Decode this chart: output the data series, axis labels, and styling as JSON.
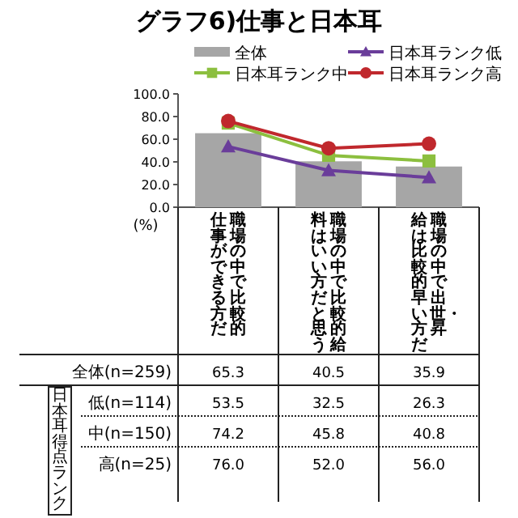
{
  "chart_data": {
    "type": "bar",
    "title": "グラフ6)仕事と日本耳",
    "ylabel": "(%)",
    "categories": [
      "職場の中で比較的仕事ができる方だ",
      "職場の中で比較的給料はいい方だと思う",
      "職場の中で出世・昇給は比較的早い方だ"
    ],
    "series": [
      {
        "name": "全体",
        "type": "bar",
        "color": "#a6a6a6",
        "values": [
          65.3,
          40.5,
          35.9
        ],
        "value_labels": [
          "65.3",
          "40.5",
          "35.9"
        ]
      },
      {
        "name": "日本耳ランク低",
        "type": "line",
        "marker": "triangle",
        "color": "#6a3d9a",
        "values": [
          53.5,
          32.5,
          26.3
        ],
        "value_labels": [
          "53.5",
          "32.5",
          "26.3"
        ]
      },
      {
        "name": "日本耳ランク中",
        "type": "line",
        "marker": "square",
        "color": "#8cbf3f",
        "values": [
          74.2,
          45.8,
          40.8
        ],
        "value_labels": [
          "74.2",
          "45.8",
          "40.8"
        ]
      },
      {
        "name": "日本耳ランク高",
        "type": "line",
        "marker": "circle",
        "color": "#c0282d",
        "values": [
          76.0,
          52.0,
          56.0
        ],
        "value_labels": [
          "76.0",
          "52.0",
          "56.0"
        ]
      }
    ],
    "ylim": [
      0,
      100
    ],
    "yticks": [
      {
        "value": 0,
        "label": "0.0"
      },
      {
        "value": 20,
        "label": "20.0"
      },
      {
        "value": 40,
        "label": "40.0"
      },
      {
        "value": 60,
        "label": "60.0"
      },
      {
        "value": 80,
        "label": "80.0"
      },
      {
        "value": 100,
        "label": "100.0"
      }
    ],
    "legend": "top",
    "grid": false,
    "annotations": [
      "全体(n=259)",
      "低(n=114)",
      "中(n=150)",
      "高(n=25)",
      "日本耳得点ランク"
    ]
  }
}
